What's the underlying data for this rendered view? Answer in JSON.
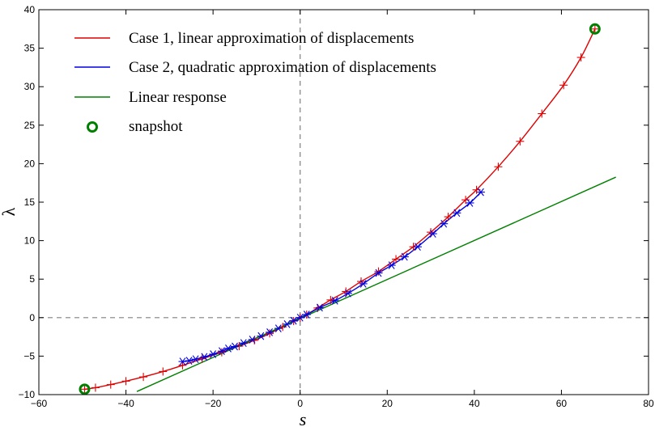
{
  "chart_data": {
    "type": "line",
    "xlabel": "s",
    "ylabel": "λ",
    "xlim": [
      -60,
      80
    ],
    "ylim": [
      -10,
      40
    ],
    "xticks": [
      -60,
      -40,
      -20,
      0,
      20,
      40,
      60,
      80
    ],
    "yticks": [
      -10,
      -5,
      0,
      5,
      10,
      15,
      20,
      25,
      30,
      35,
      40
    ],
    "xtick_labels": [
      "−60",
      "−40",
      "−20",
      "0",
      "20",
      "40",
      "60",
      "80"
    ],
    "ytick_labels": [
      "−10",
      "−5",
      "0",
      "5",
      "10",
      "15",
      "20",
      "25",
      "30",
      "35",
      "40"
    ],
    "grid": false,
    "reference_lines": [
      {
        "orientation": "vertical",
        "value": 0,
        "style": "dashed",
        "color": "#808080"
      },
      {
        "orientation": "horizontal",
        "value": 0,
        "style": "dashed",
        "color": "#808080"
      }
    ],
    "legend_position": "top-left",
    "series": [
      {
        "name": "Case 1, linear approximation of displacements",
        "color": "#e00000",
        "marker": "plus",
        "x": [
          -49.5,
          -47,
          -43.5,
          -40,
          -36,
          -31.5,
          -27,
          -22.5,
          -18,
          -14,
          -10.5,
          -7,
          -4,
          -1.5,
          0,
          1.5,
          4,
          7,
          10.5,
          14,
          18,
          22,
          26,
          30,
          34,
          38,
          40.5,
          45.5,
          50.5,
          55.5,
          60.5,
          64.5,
          67.7
        ],
        "y": [
          -9.3,
          -9.1,
          -8.7,
          -8.25,
          -7.7,
          -7.0,
          -6.2,
          -5.35,
          -4.5,
          -3.7,
          -2.95,
          -2.05,
          -1.2,
          -0.45,
          0.0,
          0.4,
          1.25,
          2.3,
          3.4,
          4.7,
          6.0,
          7.6,
          9.2,
          11.1,
          13.1,
          15.3,
          16.6,
          19.6,
          22.9,
          26.5,
          30.2,
          33.8,
          37.5
        ]
      },
      {
        "name": "Case 2, quadratic approximation of displacements",
        "color": "#0000e0",
        "marker": "asterisk",
        "x": [
          -27,
          -25.5,
          -24,
          -22,
          -20,
          -18,
          -16.5,
          -15,
          -13,
          -11,
          -9,
          -7,
          -5,
          -3,
          -1.5,
          0,
          1.5,
          4.5,
          8,
          11,
          14.5,
          18,
          21,
          24,
          27,
          30.5,
          33,
          36,
          39,
          41.5
        ],
        "y": [
          -5.7,
          -5.6,
          -5.4,
          -5.1,
          -4.75,
          -4.35,
          -4.0,
          -3.75,
          -3.3,
          -2.85,
          -2.4,
          -1.9,
          -1.4,
          -0.85,
          -0.4,
          0.0,
          0.4,
          1.3,
          2.2,
          3.15,
          4.4,
          5.8,
          6.8,
          7.9,
          9.2,
          10.9,
          12.2,
          13.6,
          14.9,
          16.3
        ]
      },
      {
        "name": "Linear response",
        "color": "#008000",
        "marker": "none",
        "x": [
          -37.5,
          72.5
        ],
        "y": [
          -9.6,
          18.25
        ]
      },
      {
        "name": "snapshot",
        "color": "#008000",
        "marker": "circle",
        "x": [
          -49.5,
          67.7
        ],
        "y": [
          -9.3,
          37.5
        ]
      }
    ]
  }
}
